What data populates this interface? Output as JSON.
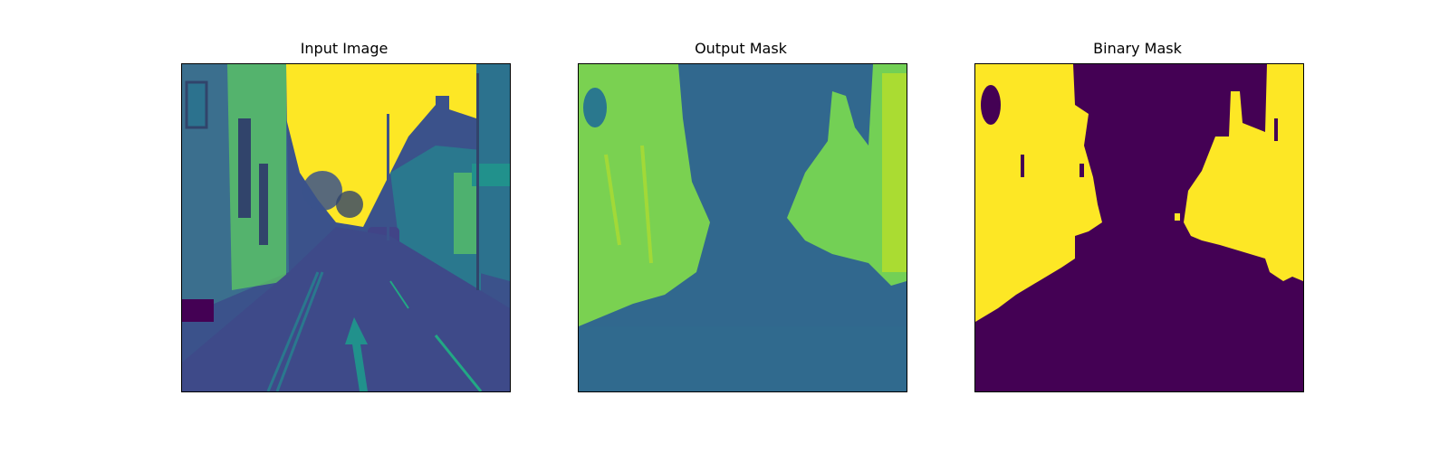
{
  "panels": [
    {
      "title": "Input Image"
    },
    {
      "title": "Output Mask"
    },
    {
      "title": "Binary Mask"
    }
  ],
  "colors": {
    "viridis_dark": "#440154",
    "viridis_blue": "#3b528b",
    "viridis_teal": "#21918c",
    "viridis_green": "#5ec962",
    "viridis_yellow": "#fde725"
  }
}
